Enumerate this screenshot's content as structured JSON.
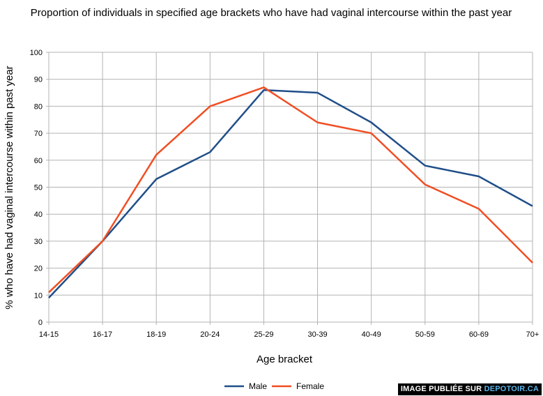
{
  "chart_data": {
    "type": "line",
    "title": "Proportion of individuals in specified age brackets who have had vaginal intercourse within the past year",
    "xlabel": "Age bracket",
    "ylabel": "% who have had vaginal intercourse within past year",
    "categories": [
      "14-15",
      "16-17",
      "18-19",
      "20-24",
      "25-29",
      "30-39",
      "40-49",
      "50-59",
      "60-69",
      "70+"
    ],
    "ylim": [
      0,
      100
    ],
    "yticks": [
      0,
      10,
      20,
      30,
      40,
      50,
      60,
      70,
      80,
      90,
      100
    ],
    "grid": true,
    "legend": "bottom",
    "series": [
      {
        "name": "Male",
        "color": "#1f4e89",
        "values": [
          9,
          30,
          53,
          63,
          86,
          85,
          74,
          58,
          54,
          43
        ]
      },
      {
        "name": "Female",
        "color": "#f04e23",
        "values": [
          11,
          30,
          62,
          80,
          87,
          74,
          70,
          51,
          42,
          22
        ]
      }
    ]
  },
  "watermark": {
    "prefix": "IMAGE PUBLIÉE SUR ",
    "site": "DEPOTOIR.CA"
  }
}
